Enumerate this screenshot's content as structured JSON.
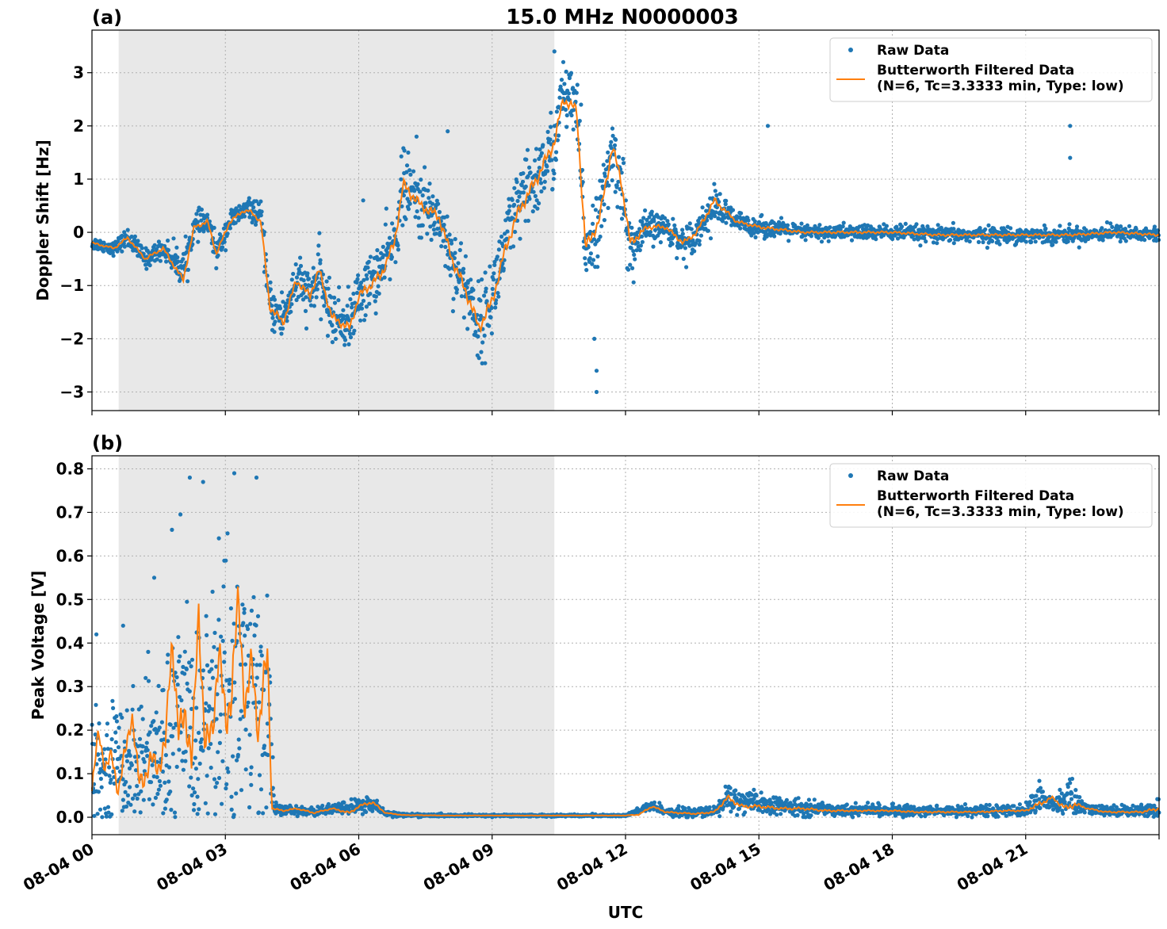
{
  "figure": {
    "title": "15.0 MHz N0000003",
    "xlabel": "UTC",
    "x_tick_labels": [
      "08-04 00",
      "08-04 03",
      "08-04 06",
      "08-04 09",
      "08-04 12",
      "08-04 15",
      "08-04 18",
      "08-04 21"
    ],
    "colors": {
      "raw": "#1f77b4",
      "filtered": "#ff7f0e",
      "shading": "#e8e8e8",
      "grid": "#b0b0b0"
    }
  },
  "chart_data": [
    {
      "panel": "(a)",
      "type": "scatter",
      "title": "15.0 MHz N0000003",
      "ylabel": "Doppler Shift [Hz]",
      "xlabel": "",
      "x_unit": "hours UTC on 08-04",
      "xlim": [
        0,
        24
      ],
      "ylim": [
        -3.35,
        3.8
      ],
      "yticks": [
        -3,
        -2,
        -1,
        0,
        1,
        2,
        3
      ],
      "ytick_labels": [
        "−3",
        "−2",
        "−1",
        "0",
        "1",
        "2",
        "3"
      ],
      "grid": true,
      "legend_position": "top-right",
      "shaded_span": [
        0.6,
        10.4
      ],
      "legend": [
        "Raw Data",
        "Butterworth Filtered Data\n(N=6, Tc=3.3333 min, Type: low)"
      ],
      "series": [
        {
          "name": "Raw Data",
          "style": "points",
          "x": [
            0,
            0.5,
            0.8,
            1.2,
            1.6,
            2.05,
            2.3,
            2.6,
            2.8,
            3.1,
            3.4,
            3.55,
            3.8,
            4.0,
            4.3,
            4.6,
            4.9,
            5.1,
            5.4,
            5.8,
            6.0,
            6.5,
            6.8,
            7.0,
            7.4,
            7.8,
            8.1,
            8.5,
            8.7,
            9.0,
            9.3,
            9.6,
            10.0,
            10.4,
            10.6,
            10.9,
            11.1,
            11.4,
            11.7,
            11.9,
            12.1,
            12.5,
            12.9,
            13.3,
            13.6,
            14.0,
            14.5,
            15.0,
            16.0,
            17.0,
            18.0,
            19.0,
            20.0,
            21.0,
            22.0,
            23.0,
            24.0
          ],
          "y": [
            -0.2,
            -0.3,
            -0.1,
            -0.5,
            -0.3,
            -0.7,
            0.1,
            0.2,
            -0.4,
            0.2,
            0.4,
            0.45,
            0.3,
            -1.4,
            -1.6,
            -0.9,
            -1.2,
            -0.8,
            -1.6,
            -1.7,
            -1.2,
            -0.7,
            -0.2,
            0.9,
            0.5,
            0.3,
            -0.5,
            -1.2,
            -1.8,
            -1.2,
            -0.2,
            0.5,
            1.0,
            1.6,
            2.6,
            2.3,
            -0.3,
            0.2,
            1.5,
            1.0,
            -0.4,
            0.1,
            0.1,
            -0.2,
            0.0,
            0.5,
            0.2,
            0.1,
            0.0,
            0.0,
            0.0,
            -0.05,
            -0.05,
            -0.05,
            -0.05,
            0.0,
            -0.05
          ],
          "spread": [
            0.1,
            0.1,
            0.15,
            0.15,
            0.15,
            0.3,
            0.2,
            0.2,
            0.2,
            0.2,
            0.15,
            0.15,
            0.2,
            0.35,
            0.4,
            0.4,
            0.4,
            0.45,
            0.4,
            0.45,
            0.45,
            0.5,
            0.5,
            0.55,
            0.5,
            0.5,
            0.55,
            0.6,
            0.6,
            0.6,
            0.6,
            0.6,
            0.6,
            0.6,
            0.5,
            0.5,
            0.6,
            0.5,
            0.6,
            0.55,
            0.5,
            0.25,
            0.2,
            0.25,
            0.25,
            0.3,
            0.15,
            0.15,
            0.12,
            0.12,
            0.12,
            0.12,
            0.12,
            0.12,
            0.12,
            0.12,
            0.12
          ],
          "outliers": [
            [
              10.4,
              3.4
            ],
            [
              10.6,
              3.2
            ],
            [
              11.35,
              -3.0
            ],
            [
              11.35,
              -2.6
            ],
            [
              11.3,
              -2.0
            ],
            [
              15.2,
              2.0
            ],
            [
              22.0,
              2.0
            ],
            [
              22.0,
              1.4
            ],
            [
              8.0,
              1.9
            ],
            [
              6.1,
              0.6
            ],
            [
              7.3,
              1.8
            ],
            [
              11.0,
              2.4
            ]
          ]
        },
        {
          "name": "Butterworth Filtered Data\n(N=6, Tc=3.3333 min, Type: low)",
          "style": "line",
          "x": [
            0,
            0.5,
            0.8,
            1.2,
            1.6,
            2.05,
            2.3,
            2.6,
            2.8,
            3.1,
            3.4,
            3.55,
            3.8,
            4.0,
            4.3,
            4.6,
            4.9,
            5.1,
            5.4,
            5.8,
            6.0,
            6.5,
            6.8,
            7.0,
            7.4,
            7.8,
            8.1,
            8.5,
            8.7,
            9.0,
            9.3,
            9.6,
            10.0,
            10.4,
            10.6,
            10.9,
            11.1,
            11.4,
            11.7,
            11.9,
            12.1,
            12.5,
            12.9,
            13.3,
            13.6,
            14.0,
            14.5,
            15.0,
            16.0,
            17.0,
            18.0,
            19.0,
            20.0,
            21.0,
            22.0,
            23.0,
            24.0
          ],
          "y": [
            -0.2,
            -0.3,
            -0.1,
            -0.5,
            -0.3,
            -0.9,
            0.1,
            0.2,
            -0.4,
            0.2,
            0.4,
            0.4,
            0.2,
            -1.4,
            -1.7,
            -0.9,
            -1.2,
            -0.7,
            -1.6,
            -1.8,
            -1.2,
            -0.8,
            -0.2,
            0.9,
            0.5,
            0.3,
            -0.5,
            -1.3,
            -1.8,
            -1.3,
            -0.3,
            0.4,
            1.0,
            1.7,
            2.5,
            2.3,
            -0.3,
            0.2,
            1.6,
            1.0,
            -0.2,
            0.1,
            0.1,
            -0.2,
            0.0,
            0.6,
            0.2,
            0.1,
            0.0,
            0.0,
            0.0,
            -0.05,
            -0.05,
            -0.05,
            -0.05,
            0.0,
            -0.05
          ]
        }
      ]
    },
    {
      "panel": "(b)",
      "type": "scatter",
      "title": "",
      "ylabel": "Peak Voltage [V]",
      "xlabel": "UTC",
      "x_unit": "hours UTC on 08-04",
      "xlim": [
        0,
        24
      ],
      "ylim": [
        -0.04,
        0.83
      ],
      "yticks": [
        0.0,
        0.1,
        0.2,
        0.3,
        0.4,
        0.5,
        0.6,
        0.7,
        0.8
      ],
      "ytick_labels": [
        "0.0",
        "0.1",
        "0.2",
        "0.3",
        "0.4",
        "0.5",
        "0.6",
        "0.7",
        "0.8"
      ],
      "grid": true,
      "legend_position": "top-right",
      "shaded_span": [
        0.6,
        10.4
      ],
      "legend": [
        "Raw Data",
        "Butterworth Filtered Data\n(N=6, Tc=3.3333 min, Type: low)"
      ],
      "series": [
        {
          "name": "Raw Data",
          "style": "points",
          "x": [
            0,
            0.3,
            0.6,
            0.9,
            1.2,
            1.5,
            1.8,
            2.1,
            2.4,
            2.7,
            3.0,
            3.3,
            3.6,
            3.95,
            4.1,
            4.5,
            5.0,
            5.5,
            6.0,
            6.3,
            6.6,
            7.0,
            8.0,
            9.0,
            10.0,
            11.0,
            12.0,
            12.6,
            13.0,
            13.5,
            14.0,
            14.3,
            14.7,
            15.0,
            15.5,
            16.0,
            16.5,
            17.0,
            17.5,
            18.0,
            18.5,
            19.0,
            19.5,
            20.0,
            20.5,
            21.0,
            21.3,
            21.6,
            22.0,
            22.3,
            22.6,
            23.0,
            23.5,
            24.0
          ],
          "y": [
            0.1,
            0.1,
            0.15,
            0.12,
            0.15,
            0.12,
            0.2,
            0.2,
            0.18,
            0.25,
            0.28,
            0.3,
            0.28,
            0.25,
            0.02,
            0.015,
            0.012,
            0.02,
            0.025,
            0.03,
            0.01,
            0.005,
            0.004,
            0.004,
            0.004,
            0.004,
            0.004,
            0.025,
            0.012,
            0.01,
            0.012,
            0.045,
            0.035,
            0.03,
            0.025,
            0.02,
            0.02,
            0.015,
            0.018,
            0.015,
            0.015,
            0.015,
            0.015,
            0.015,
            0.015,
            0.015,
            0.05,
            0.025,
            0.045,
            0.02,
            0.015,
            0.015,
            0.015,
            0.02
          ],
          "spread": [
            0.1,
            0.1,
            0.12,
            0.12,
            0.15,
            0.15,
            0.2,
            0.25,
            0.25,
            0.25,
            0.3,
            0.3,
            0.25,
            0.25,
            0.01,
            0.008,
            0.008,
            0.01,
            0.015,
            0.02,
            0.005,
            0.003,
            0.002,
            0.002,
            0.002,
            0.002,
            0.002,
            0.01,
            0.008,
            0.008,
            0.01,
            0.03,
            0.02,
            0.02,
            0.015,
            0.015,
            0.012,
            0.01,
            0.01,
            0.01,
            0.01,
            0.01,
            0.01,
            0.01,
            0.01,
            0.01,
            0.03,
            0.015,
            0.04,
            0.01,
            0.01,
            0.01,
            0.01,
            0.02
          ],
          "outliers": [
            [
              2.2,
              0.78
            ],
            [
              2.5,
              0.77
            ],
            [
              3.2,
              0.79
            ],
            [
              3.7,
              0.78
            ],
            [
              1.4,
              0.55
            ],
            [
              1.8,
              0.66
            ],
            [
              0.7,
              0.44
            ],
            [
              0.1,
              0.42
            ]
          ]
        },
        {
          "name": "Butterworth Filtered Data\n(N=6, Tc=3.3333 min, Type: low)",
          "style": "line",
          "x": [
            0,
            0.15,
            0.3,
            0.45,
            0.6,
            0.75,
            0.9,
            1.05,
            1.2,
            1.35,
            1.5,
            1.65,
            1.8,
            1.95,
            2.1,
            2.25,
            2.4,
            2.55,
            2.7,
            2.85,
            3.0,
            3.15,
            3.3,
            3.45,
            3.6,
            3.75,
            3.95,
            4.05,
            4.3,
            4.6,
            5.0,
            5.4,
            5.8,
            6.0,
            6.3,
            6.6,
            7.0,
            8.0,
            9.0,
            10.0,
            11.0,
            12.0,
            12.3,
            12.6,
            12.9,
            13.2,
            13.6,
            14.0,
            14.3,
            14.6,
            15.0,
            15.5,
            16.0,
            16.5,
            17.0,
            17.5,
            18.0,
            18.5,
            19.0,
            19.5,
            20.0,
            20.5,
            21.0,
            21.3,
            21.6,
            21.9,
            22.1,
            22.4,
            22.8,
            23.2,
            23.6,
            24.0
          ],
          "y": [
            0.06,
            0.2,
            0.11,
            0.14,
            0.06,
            0.15,
            0.24,
            0.08,
            0.1,
            0.13,
            0.12,
            0.16,
            0.42,
            0.18,
            0.25,
            0.12,
            0.48,
            0.15,
            0.2,
            0.38,
            0.22,
            0.3,
            0.5,
            0.25,
            0.35,
            0.2,
            0.38,
            0.02,
            0.015,
            0.02,
            0.01,
            0.02,
            0.01,
            0.025,
            0.035,
            0.01,
            0.005,
            0.004,
            0.004,
            0.004,
            0.004,
            0.004,
            0.006,
            0.025,
            0.012,
            0.01,
            0.008,
            0.012,
            0.045,
            0.025,
            0.025,
            0.02,
            0.02,
            0.015,
            0.015,
            0.015,
            0.015,
            0.012,
            0.012,
            0.012,
            0.012,
            0.015,
            0.015,
            0.03,
            0.045,
            0.02,
            0.03,
            0.02,
            0.012,
            0.012,
            0.012,
            0.02
          ]
        }
      ]
    }
  ]
}
